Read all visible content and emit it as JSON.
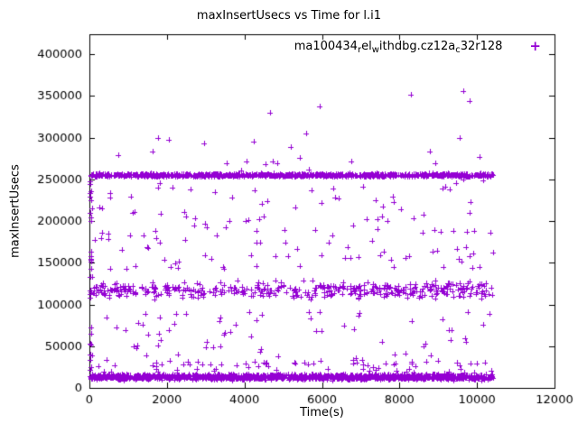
{
  "chart_data": {
    "type": "scatter",
    "title": "maxInsertUsecs vs Time for l.i1",
    "xlabel": "Time(s)",
    "ylabel": "maxInsertUsecs",
    "xlim": [
      0,
      12000
    ],
    "ylim": [
      0,
      424000
    ],
    "x_ticks": [
      0,
      2000,
      4000,
      6000,
      8000,
      10000,
      12000
    ],
    "y_ticks": [
      0,
      50000,
      100000,
      150000,
      200000,
      250000,
      300000,
      350000,
      400000
    ],
    "grid": false,
    "legend_position": "top-right-inside",
    "marker": "plus",
    "marker_color": "#9400D3",
    "axis_color": "#000000",
    "text_color": "#000000",
    "background": "#ffffff",
    "legend_segments": [
      {
        "text": "ma100434"
      },
      {
        "text": "r",
        "sub": true
      },
      {
        "text": "el"
      },
      {
        "text": "w",
        "sub": true
      },
      {
        "text": "ithdbg.cz12a"
      },
      {
        "text": "c",
        "sub": true
      },
      {
        "text": "32r128"
      }
    ],
    "seed": 1337,
    "x_data_range": [
      20,
      10420
    ],
    "bands": [
      {
        "name": "top-band",
        "y_center": 255000,
        "y_spread": 2800,
        "count": 1000
      },
      {
        "name": "bottom-band",
        "y_center": 13000,
        "y_spread": 4500,
        "count": 1500
      },
      {
        "name": "mid-cloud",
        "y_center": 117000,
        "y_spread": 14000,
        "count": 420
      },
      {
        "name": "bottom-tail",
        "y_min": 18000,
        "y_max": 32000,
        "count": 60,
        "uniform": true
      },
      {
        "name": "scatter-low",
        "y_min": 25000,
        "y_max": 95000,
        "count": 80,
        "uniform": true
      },
      {
        "name": "scatter-mid-high",
        "y_min": 140000,
        "y_max": 250000,
        "count": 130,
        "uniform": true
      },
      {
        "name": "above-top",
        "y_min": 258000,
        "y_max": 300000,
        "count": 18,
        "uniform": true
      }
    ],
    "left_edge_column": {
      "x_min": 20,
      "x_max": 60,
      "y_min": 9000,
      "y_max": 262000,
      "count": 28
    },
    "outliers": [
      [
        4650,
        330000
      ],
      [
        5950,
        338000
      ],
      [
        8300,
        352000
      ],
      [
        9650,
        356000
      ],
      [
        9800,
        344000
      ],
      [
        2050,
        297000
      ],
      [
        9550,
        300000
      ],
      [
        5600,
        305000
      ]
    ]
  }
}
